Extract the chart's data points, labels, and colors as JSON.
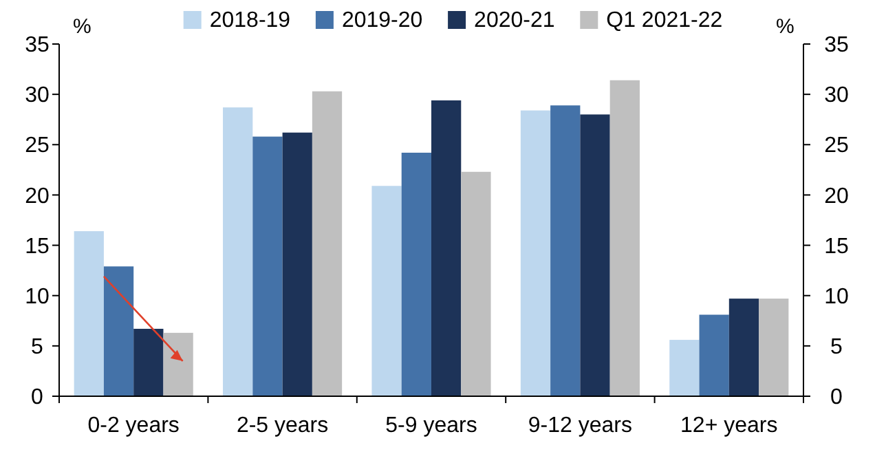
{
  "chart_data": {
    "type": "bar",
    "categories": [
      "0-2 years",
      "2-5 years",
      "5-9 years",
      "9-12 years",
      "12+ years"
    ],
    "series": [
      {
        "name": "2018-19",
        "color": "#bdd7ee",
        "values": [
          16.4,
          28.7,
          20.9,
          28.4,
          5.6
        ]
      },
      {
        "name": "2019-20",
        "color": "#4472a8",
        "values": [
          12.9,
          25.8,
          24.2,
          28.9,
          8.1
        ]
      },
      {
        "name": "2020-21",
        "color": "#1d3358",
        "values": [
          6.7,
          26.2,
          29.4,
          28.0,
          9.7
        ]
      },
      {
        "name": "Q1 2021-22",
        "color": "#bfbfbf",
        "values": [
          6.3,
          30.3,
          22.3,
          31.4,
          9.7
        ]
      }
    ],
    "ylabel": "%",
    "y2label": "%",
    "ylim": [
      0,
      35
    ],
    "yticks": [
      0,
      5,
      10,
      15,
      20,
      25,
      30,
      35
    ],
    "y2lim": [
      0,
      35
    ],
    "y2ticks": [
      0,
      5,
      10,
      15,
      20,
      25,
      30,
      35
    ],
    "grid": false,
    "legend": "top"
  }
}
